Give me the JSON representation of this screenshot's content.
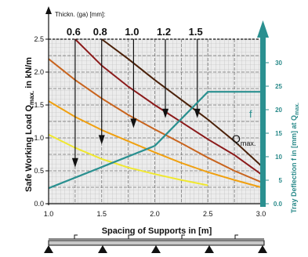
{
  "chart_data": {
    "type": "line",
    "title": "",
    "thickness_label": "Thickn. (ga) [mm]:",
    "xlabel": "Spacing of Supports in [m]",
    "ylabel": "Safe Working Load Q",
    "ylabel_sub": "max.",
    "ylabel_unit": " in kN/m",
    "y2label": "Tray Deflection f in [mm] at Q",
    "y2label_sub": "max.",
    "xlim": [
      1.0,
      3.0
    ],
    "ylim": [
      0.0,
      2.5
    ],
    "y2lim": [
      0,
      35
    ],
    "x_ticks": [
      "1.0",
      "1.5",
      "2.0",
      "2.5",
      "3.0"
    ],
    "y_ticks": [
      "0.0",
      "0.5",
      "1.0",
      "1.5",
      "2.0",
      "2.5"
    ],
    "y2_ticks": [
      "0.0",
      "5",
      "10",
      "15",
      "20",
      "25",
      "30"
    ],
    "f_label": "f",
    "q_label": "Q",
    "q_label_sub": "max.",
    "series": [
      {
        "name": "0.6",
        "color": "#f0e830",
        "x": [
          1.0,
          1.25,
          1.5,
          1.75,
          2.0,
          2.25,
          2.5
        ],
        "y": [
          1.05,
          0.85,
          0.68,
          0.55,
          0.45,
          0.36,
          0.28
        ]
      },
      {
        "name": "0.8",
        "color": "#f0a010",
        "x": [
          1.0,
          1.25,
          1.5,
          1.75,
          2.0,
          2.25,
          2.5,
          2.75,
          3.0
        ],
        "y": [
          1.56,
          1.32,
          1.12,
          0.95,
          0.78,
          0.62,
          0.48,
          0.36,
          0.25
        ]
      },
      {
        "name": "1.0",
        "color": "#c8641e",
        "x": [
          1.0,
          1.25,
          1.5,
          1.75,
          2.0,
          2.25,
          2.5,
          2.75,
          3.0
        ],
        "y": [
          2.2,
          1.88,
          1.6,
          1.35,
          1.13,
          0.92,
          0.7,
          0.5,
          0.33
        ]
      },
      {
        "name": "1.2",
        "color": "#8b1a1a",
        "x": [
          1.25,
          1.5,
          1.75,
          2.0,
          2.25,
          2.5,
          2.75,
          3.0
        ],
        "y": [
          2.5,
          2.1,
          1.78,
          1.5,
          1.24,
          0.98,
          0.74,
          0.45
        ]
      },
      {
        "name": "1.5",
        "color": "#4a2008",
        "x": [
          1.5,
          1.75,
          2.0,
          2.25,
          2.5,
          2.75,
          3.0
        ],
        "y": [
          2.5,
          2.2,
          1.88,
          1.58,
          1.28,
          0.95,
          0.58
        ]
      }
    ],
    "deflection_series": {
      "name": "f",
      "color": "#2a9090",
      "x": [
        1.0,
        1.5,
        2.0,
        2.5,
        3.0
      ],
      "y": [
        3.3,
        7.8,
        12.3,
        23.8,
        23.8
      ]
    },
    "load_arrows": [
      {
        "x": 1.25,
        "y_top": 2.5,
        "y_bottom": 0.55
      },
      {
        "x": 1.5,
        "y_top": 2.5,
        "y_bottom": 0.9
      },
      {
        "x": 1.8,
        "y_top": 2.5,
        "y_bottom": 1.15
      },
      {
        "x": 2.1,
        "y_top": 2.5,
        "y_bottom": 1.3
      },
      {
        "x": 2.4,
        "y_top": 2.5,
        "y_bottom": 1.3
      }
    ],
    "grid": true
  }
}
